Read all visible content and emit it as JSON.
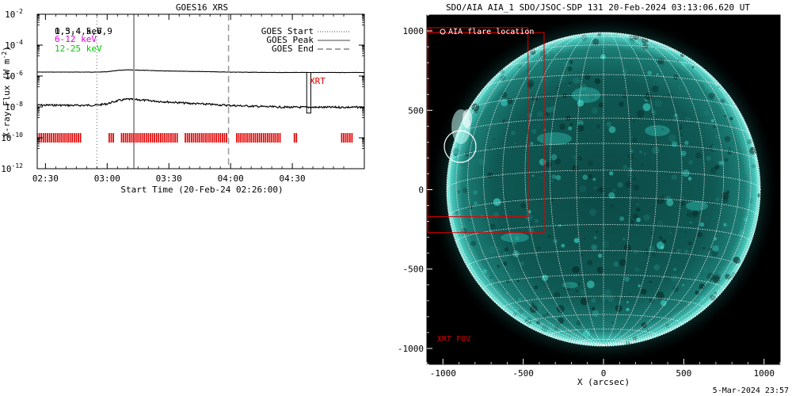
{
  "goes_panel": {
    "title": "GOES16 XRS",
    "ylabel": "X-ray Flux (W m",
    "ylabel_exp": "-2",
    "ylabel_close": ")",
    "xlabel": "Start Time (20-Feb-24 02:26:00)",
    "ytick_labels": [
      {
        "base": "10",
        "exp": "-2"
      },
      {
        "base": "10",
        "exp": "-4"
      },
      {
        "base": "10",
        "exp": "-6"
      },
      {
        "base": "10",
        "exp": "-8"
      },
      {
        "base": "10",
        "exp": "-10"
      },
      {
        "base": "10",
        "exp": "-12"
      }
    ],
    "xtick_labels": [
      "02:30",
      "03:00",
      "03:30",
      "04:00",
      "04:30"
    ],
    "channel_labels": [
      "0.5-4 keV",
      "1,3,4,5,6,9",
      "6-12 keV",
      "12-25 keV"
    ],
    "legend": [
      "GOES Start",
      "GOES Peak",
      "GOES End"
    ],
    "xrt_label": "XRT"
  },
  "aia_panel": {
    "title": "SDO/AIA AIA_1 SDO/JSOC-SDP 131 20-Feb-2024 03:13:06.620 UT",
    "flare_label": "AIA flare location",
    "xrt_fov_label": "XRT FOV",
    "xlabel": "X (arcsec)",
    "xtick_labels": [
      "-1000",
      "-500",
      "0",
      "500",
      "1000"
    ],
    "ytick_labels": [
      "1000",
      "500",
      "0",
      "-500",
      "-1000"
    ],
    "footer_timestamp": "5-Mar-2024 23:57"
  },
  "colors": {
    "soft_channel": "#000000",
    "hard_channel": "#d900d9",
    "high_channel": "#00cc00",
    "xrt_marker": "#e00000",
    "sun_glow": "#2fd0c4",
    "grid": "#ffffff"
  },
  "chart_data": [
    {
      "type": "line",
      "title": "GOES16 XRS",
      "xlabel": "Start Time (20-Feb-24 02:26:00)",
      "ylabel": "X-ray Flux (W m-2)",
      "yscale": "log",
      "ylim": [
        1e-12,
        0.01
      ],
      "x_ticks": [
        "02:30",
        "03:00",
        "03:30",
        "04:00",
        "04:30"
      ],
      "x": [
        "02:26",
        "02:35",
        "02:45",
        "02:55",
        "03:00",
        "03:05",
        "03:10",
        "03:15",
        "03:25",
        "03:40",
        "04:00",
        "04:20",
        "04:30",
        "04:35",
        "04:40",
        "05:00"
      ],
      "series": [
        {
          "name": "0.5-4 keV",
          "values": [
            1.8e-06,
            1.8e-06,
            1.8e-06,
            1.8e-06,
            1.9e-06,
            2.3e-06,
            2.5e-06,
            2.4e-06,
            2.2e-06,
            2e-06,
            1.8e-06,
            1.7e-06,
            1.7e-06,
            1.7e-06,
            1.7e-06,
            1.7e-06
          ]
        },
        {
          "name": "1,3,4,5,6,9",
          "values": [
            1.3e-08,
            1.3e-08,
            1.25e-08,
            1.3e-08,
            1.6e-08,
            2.5e-08,
            3.2e-08,
            2.9e-08,
            2.3e-08,
            1.7e-08,
            1.25e-08,
            1e-08,
            9.5e-09,
            9.5e-09,
            9.5e-09,
            9.5e-09
          ]
        }
      ],
      "vertical_markers": [
        {
          "name": "GOES Start",
          "time": "02:55",
          "style": "dotted"
        },
        {
          "name": "GOES Peak",
          "time": "03:13",
          "style": "solid"
        },
        {
          "name": "GOES End",
          "time": "03:59",
          "style": "dashed"
        }
      ],
      "xrt_coverage": [
        [
          "02:26",
          "02:48"
        ],
        [
          "03:01",
          "03:04"
        ],
        [
          "03:07",
          "03:35"
        ],
        [
          "03:38",
          "03:59"
        ],
        [
          "04:03",
          "04:25"
        ],
        [
          "04:31",
          "04:33"
        ],
        [
          "04:54",
          "05:00"
        ]
      ],
      "xrt_flux_window": [
        "04:37",
        "04:39"
      ],
      "legend": [
        "GOES Start",
        "GOES Peak",
        "GOES End"
      ]
    },
    {
      "type": "image",
      "title": "SDO/AIA AIA_1 SDO/JSOC-SDP 131 20-Feb-2024 03:13:06.620 UT",
      "xlabel": "X (arcsec)",
      "ylabel": "",
      "xlim": [
        -1100,
        1100
      ],
      "ylim": [
        -1100,
        1100
      ],
      "x_ticks": [
        -1000,
        -500,
        0,
        500,
        1000
      ],
      "y_ticks": [
        -1000,
        -500,
        0,
        500,
        1000
      ],
      "solar_radius_arcsec": 975,
      "flare_location_arcsec": [
        -900,
        270
      ],
      "xrt_fov_boxes_arcsec": [
        [
          -1095,
          -1075,
          1000,
          1020
        ],
        [
          -1095,
          -470,
          990,
          1020
        ],
        [
          -1095,
          -470,
          990,
          -170
        ],
        [
          -1095,
          -370,
          990,
          -270
        ]
      ]
    }
  ]
}
